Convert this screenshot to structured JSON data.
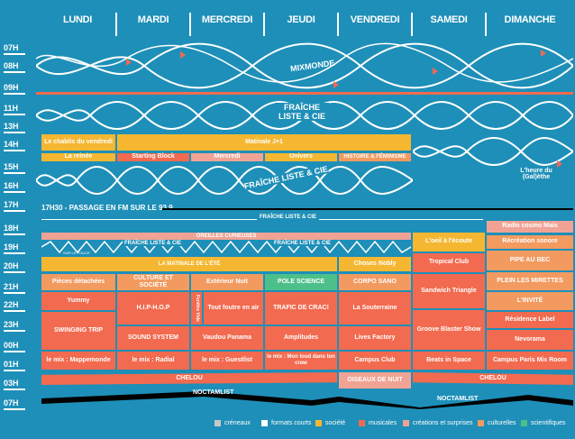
{
  "days": [
    "LUNDI",
    "MARDI",
    "MERCREDI",
    "JEUDI",
    "VENDREDI",
    "SAMEDI",
    "DIMANCHE"
  ],
  "hours": [
    "07H",
    "08H",
    "09H",
    "11H",
    "13H",
    "14H",
    "15H",
    "16H",
    "17H",
    "18H",
    "19H",
    "20H",
    "21H",
    "22H",
    "23H",
    "00H",
    "01H",
    "03H",
    "07H"
  ],
  "labels": {
    "mixmonde": "MIXMONDE",
    "fraiche1": "FRAÎCHE\nLISTE & CIE",
    "fraiche2": "FRAÎCHE LISTE & CIE",
    "chablis": "Le chablis du vendredi",
    "matinale": "Matinale J+1",
    "reine": "La reinée",
    "starting": "Starting Block",
    "mercredi": "Mercredi",
    "univers": "Univers",
    "histoire": "HISTOIRE & FÉMINISME",
    "heure": "L'heure du (Gal)èthe",
    "passage": "17H30 - PASSAGE EN FM SUR LE 93.9",
    "fraiche3": "FRAÎCHE LISTE & CIE",
    "radio_cosmo": "Radio cosmo Mais",
    "oreilles": "OREILLES CURIEUSES",
    "recreation": "Récréation sonore",
    "fraiche4": "FRAÎCHE LISTE & CIE",
    "fraiche5": "FRAÎCHE LISTE & CIE",
    "oeil": "L'oeil à l'écoute",
    "matinale2": "LA MATINALE DE L'ÉTÉ",
    "choses": "Choses Nobly",
    "tropical": "Tropical Club",
    "pipe": "PIPE AU BEC",
    "pieces": "Pièces détachées",
    "culture": "CULTURE ET SOCIÉTÉ",
    "exterieur": "Extérieur Nuit",
    "pole": "POLE SCIENCE",
    "corpo": "CORPO SANO",
    "sandwich": "Sandwich Triangle",
    "plein": "PLEIN LES MIRETTES",
    "yummy": "Yummy",
    "hiphop": "H.I.P-H.O.P",
    "fenetre": "Fenêtre Vide",
    "tout": "Tout foutre en air",
    "trafic": "TRAFIC DE CRAC!",
    "souterraine": "La Souterraine",
    "invite": "L'INVITÉ",
    "groove": "Groove Blaster Show",
    "residence": "Résidence Label",
    "swinging": "SWINGING TRIP",
    "sound": "SOUND SYSTEM",
    "vaudou": "Vaudou Panama",
    "amplitudes": "Amplitudes",
    "lives": "Lives Factory",
    "nevorama": "Nevorama",
    "mix1": "le mix : Mappemonde",
    "mix2": "le mix : Radial",
    "mix3": "le mix : Guestlist",
    "mix4": "le mix : Mon loud dans ton crew",
    "campus": "Campus Club",
    "beats": "Beats in Space",
    "campus_paris": "Campus Paris Mix Room",
    "chelou": "CHELOU",
    "chelou2": "CHELOU",
    "oiseaux": "OISEAUX DE NUIT",
    "noctamlist": "NOCTAMLIST",
    "noctamlist2": "NOCTAMLIST",
    "surlepouce": "SUR LE POUCE"
  },
  "legend": [
    {
      "label": "créneaux",
      "color": "#c8c8c8"
    },
    {
      "label": "formats courts",
      "color": "#ffffff"
    },
    {
      "label": "société",
      "color": "#f5b731"
    },
    {
      "label": "musicales",
      "color": "#f26a4f"
    },
    {
      "label": "créations et surprises",
      "color": "#f0a394"
    },
    {
      "label": "culturelles",
      "color": "#f29a60"
    },
    {
      "label": "scientifiques",
      "color": "#4dbf8a"
    }
  ]
}
